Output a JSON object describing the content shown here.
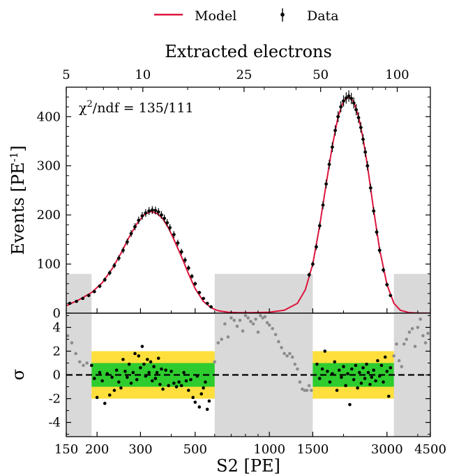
{
  "legend": {
    "model_label": "Model",
    "data_label": "Data",
    "model_color": "#dc143c"
  },
  "chart_data": [
    {
      "type": "line",
      "panel": "main",
      "title": "",
      "top_axis_label": "Extracted electrons",
      "top_ticks": [
        5,
        10,
        25,
        50,
        100
      ],
      "ylabel": "Events [PE-1]",
      "ylabel_parts": {
        "base": "Events [PE",
        "sup": "-1",
        "close": "]"
      },
      "annotation": {
        "chi_symbol": "χ",
        "sup": "2",
        "text": "/ndf = 135/111"
      },
      "xscale": "log",
      "xlim": [
        150,
        4500
      ],
      "ylim": [
        0,
        460
      ],
      "yticks": [
        0,
        100,
        200,
        300,
        400
      ],
      "excluded_regions": [
        [
          150,
          190
        ],
        [
          600,
          1500
        ],
        [
          3200,
          4500
        ]
      ],
      "series": [
        {
          "name": "Model",
          "color": "#dc143c",
          "x": [
            150,
            170,
            190,
            210,
            230,
            250,
            270,
            290,
            310,
            330,
            350,
            370,
            390,
            410,
            440,
            470,
            500,
            540,
            580,
            620,
            680,
            750,
            850,
            1000,
            1150,
            1300,
            1400,
            1500,
            1600,
            1700,
            1800,
            1900,
            2000,
            2100,
            2200,
            2300,
            2400,
            2500,
            2650,
            2800,
            3000,
            3200,
            3400,
            3700,
            4000,
            4500
          ],
          "y": [
            15,
            28,
            42,
            62,
            90,
            122,
            155,
            182,
            200,
            207,
            203,
            192,
            173,
            150,
            115,
            80,
            50,
            24,
            11,
            5,
            2,
            1,
            1,
            2,
            6,
            20,
            48,
            100,
            178,
            263,
            340,
            400,
            432,
            440,
            430,
            400,
            356,
            300,
            210,
            130,
            58,
            20,
            6,
            1,
            0.3,
            0
          ]
        },
        {
          "name": "Data",
          "color": "#000000",
          "x": [
            155,
            165,
            175,
            185,
            195,
            205,
            215,
            225,
            235,
            245,
            255,
            265,
            275,
            285,
            295,
            305,
            315,
            325,
            335,
            345,
            355,
            365,
            375,
            385,
            395,
            410,
            425,
            440,
            455,
            470,
            485,
            500,
            520,
            540,
            560,
            580,
            1450,
            1500,
            1550,
            1600,
            1650,
            1700,
            1750,
            1800,
            1850,
            1900,
            1950,
            2000,
            2050,
            2100,
            2150,
            2200,
            2250,
            2300,
            2350,
            2400,
            2450,
            2500,
            2575,
            2650,
            2725,
            2800,
            2900,
            3000,
            3100
          ],
          "y": [
            20,
            24,
            30,
            36,
            44,
            55,
            68,
            82,
            97,
            112,
            128,
            145,
            162,
            176,
            189,
            198,
            204,
            208,
            210,
            209,
            206,
            200,
            193,
            184,
            174,
            160,
            143,
            125,
            108,
            92,
            75,
            60,
            42,
            30,
            20,
            13,
            78,
            100,
            135,
            178,
            220,
            263,
            303,
            338,
            372,
            400,
            420,
            432,
            438,
            442,
            437,
            428,
            414,
            398,
            378,
            354,
            328,
            300,
            255,
            208,
            165,
            128,
            88,
            58,
            36
          ]
        }
      ]
    },
    {
      "type": "scatter",
      "panel": "residuals",
      "ylabel": "σ",
      "xlabel": "S2 [PE]",
      "xscale": "log",
      "xlim": [
        150,
        4500
      ],
      "ylim": [
        -5.2,
        5.2
      ],
      "yticks": [
        4,
        2,
        0,
        -2,
        -4
      ],
      "ytick_labels": [
        "4",
        "2",
        "0",
        "-2",
        "-4"
      ],
      "xticks": [
        150,
        200,
        300,
        500,
        1000,
        1500,
        3000,
        4500
      ],
      "xtick_labels": [
        "150",
        "200",
        "300",
        "500",
        "1000",
        "1500",
        "3000",
        "4500"
      ],
      "bands": {
        "one_sigma": 1,
        "two_sigma": 2,
        "one_sigma_color": "#2ecc2e",
        "two_sigma_color": "#ffdf3c"
      },
      "series": [
        {
          "name": "included",
          "color": "#000000",
          "x": [
            190,
            195,
            200,
            205,
            210,
            215,
            220,
            225,
            230,
            235,
            240,
            245,
            250,
            255,
            260,
            265,
            270,
            275,
            280,
            285,
            290,
            295,
            300,
            305,
            310,
            315,
            320,
            325,
            330,
            335,
            340,
            345,
            350,
            355,
            360,
            365,
            370,
            380,
            390,
            400,
            410,
            420,
            430,
            440,
            450,
            460,
            470,
            480,
            490,
            500,
            510,
            520,
            530,
            540,
            550,
            560,
            570,
            1560,
            1600,
            1640,
            1680,
            1720,
            1760,
            1800,
            1840,
            1880,
            1920,
            1960,
            2000,
            2040,
            2080,
            2120,
            2160,
            2200,
            2240,
            2280,
            2320,
            2360,
            2400,
            2440,
            2480,
            2520,
            2560,
            2600,
            2650,
            2700,
            2750,
            2800,
            2850,
            2900,
            2950,
            3000,
            3050,
            3100
          ],
          "y": [
            0.8,
            -0.3,
            -1.9,
            0.2,
            -0.5,
            -2.4,
            0.1,
            -1.7,
            -0.2,
            -1.3,
            0.4,
            -0.6,
            -1.1,
            1.3,
            0.3,
            -0.2,
            0.9,
            -0.7,
            0.2,
            1.8,
            -0.4,
            1.6,
            0.6,
            2.4,
            0.9,
            -0.1,
            1.3,
            0.2,
            1.1,
            -0.5,
            0.7,
            -0.3,
            0.2,
            1.4,
            -0.8,
            0.5,
            -1.2,
            0.4,
            -0.9,
            0.3,
            -0.7,
            -1.0,
            -0.6,
            -0.9,
            0.2,
            -0.5,
            -1.3,
            -0.4,
            -1.9,
            -2.3,
            -0.1,
            -2.7,
            -1.6,
            -1.1,
            -0.6,
            -2.9,
            -2.2,
            0.9,
            -0.3,
            0.5,
            2.0,
            0.3,
            -0.6,
            0.1,
            1.1,
            -1.3,
            0.4,
            -0.2,
            0.7,
            -0.9,
            0.1,
            -2.5,
            0.5,
            -0.4,
            0.8,
            -1.1,
            0.2,
            -0.7,
            0.6,
            -0.3,
            0.9,
            0.2,
            -0.8,
            -0.2,
            0.4,
            -0.5,
            1.2,
            -0.1,
            0.8,
            -0.6,
            1.5,
            0.3,
            -1.8,
            0.6
          ]
        },
        {
          "name": "excluded",
          "color": "#8c8c8c",
          "x": [
            152,
            158,
            164,
            170,
            176,
            182,
            600,
            620,
            640,
            660,
            680,
            700,
            720,
            740,
            760,
            780,
            800,
            820,
            840,
            860,
            880,
            900,
            920,
            940,
            960,
            980,
            1000,
            1030,
            1060,
            1090,
            1120,
            1150,
            1180,
            1210,
            1240,
            1270,
            1300,
            1330,
            1360,
            1390,
            1420,
            1450,
            1480,
            3200,
            3280,
            3360,
            3440,
            3520,
            3600,
            3700,
            3800,
            3900,
            4000,
            4100,
            4200,
            4300,
            4400
          ],
          "y": [
            3.3,
            2.7,
            1.8,
            1.1,
            0.8,
            1.0,
            1.1,
            2.7,
            3.0,
            4.3,
            3.2,
            4.8,
            4.6,
            4.1,
            4.6,
            3.7,
            5.0,
            4.8,
            4.5,
            4.3,
            4.7,
            3.6,
            5.0,
            4.8,
            4.9,
            4.4,
            4.2,
            3.9,
            3.4,
            2.8,
            2.3,
            1.8,
            1.6,
            1.8,
            1.5,
            0.9,
            0.5,
            -0.6,
            -1.2,
            -1.3,
            -1.3,
            -0.9,
            -1.3,
            1.6,
            2.6,
            1.2,
            0.7,
            2.6,
            3.0,
            3.6,
            3.9,
            2.4,
            4.0,
            4.7,
            3.3,
            2.7,
            3.5
          ]
        }
      ]
    }
  ]
}
